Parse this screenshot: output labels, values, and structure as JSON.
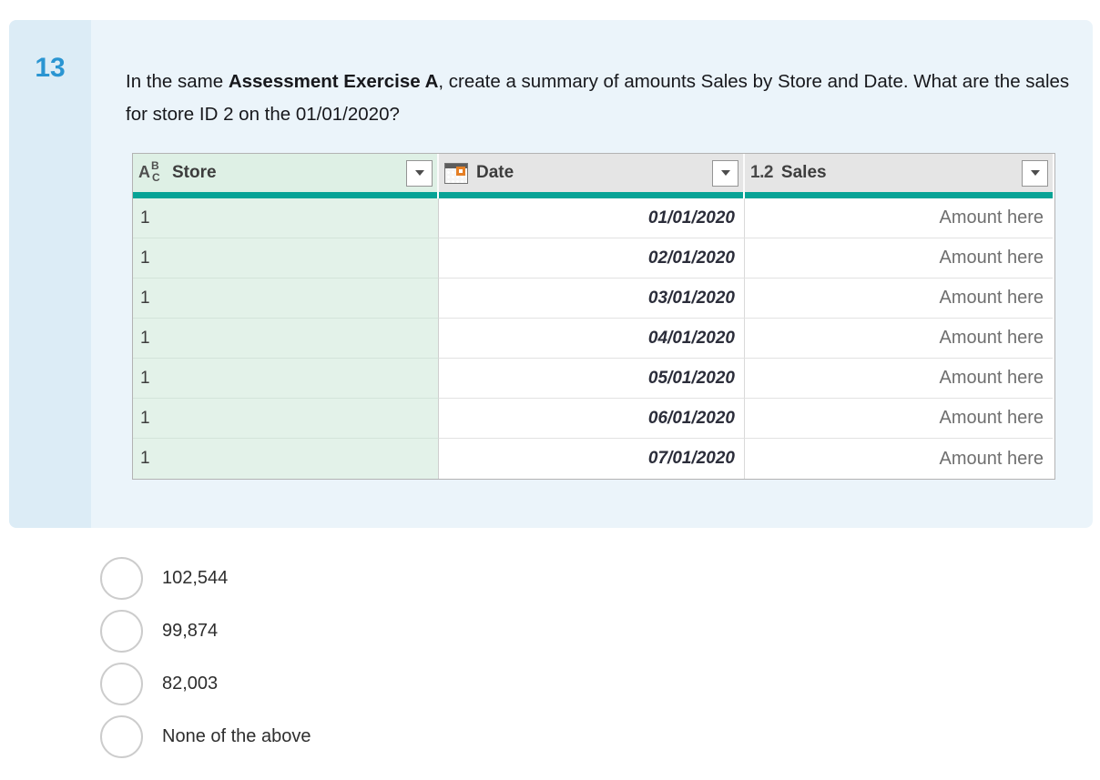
{
  "question": {
    "number": "13",
    "text_prefix": "In the same ",
    "text_bold": "Assessment Exercise A",
    "text_suffix": ", create a summary of amounts Sales by Store and Date. What are the sales for store ID 2 on the 01/01/2020?"
  },
  "table": {
    "columns": [
      {
        "label": "Store",
        "type_icon": "text-type-icon"
      },
      {
        "label": "Date",
        "type_icon": "calendar-icon"
      },
      {
        "label": "Sales",
        "type_icon": "number-type-icon"
      }
    ],
    "type_icons": {
      "abc_a": "A",
      "abc_b": "B",
      "abc_c": "C",
      "number": "1.2"
    },
    "rows": [
      {
        "store": "1",
        "date": "01/01/2020",
        "sales": "Amount here"
      },
      {
        "store": "1",
        "date": "02/01/2020",
        "sales": "Amount here"
      },
      {
        "store": "1",
        "date": "03/01/2020",
        "sales": "Amount here"
      },
      {
        "store": "1",
        "date": "04/01/2020",
        "sales": "Amount here"
      },
      {
        "store": "1",
        "date": "05/01/2020",
        "sales": "Amount here"
      },
      {
        "store": "1",
        "date": "06/01/2020",
        "sales": "Amount here"
      },
      {
        "store": "1",
        "date": "07/01/2020",
        "sales": "Amount here"
      }
    ]
  },
  "options": [
    {
      "label": "102,544"
    },
    {
      "label": "99,874"
    },
    {
      "label": "82,003"
    },
    {
      "label": "None of the above"
    }
  ],
  "colors": {
    "accent_teal": "#07a396",
    "question_number_blue": "#2a95d2",
    "card_body_blue": "#ebf4fa",
    "card_strip_blue": "#dcecf6",
    "selected_column_green": "#e3f2e9",
    "header_gray": "#e5e5e5"
  }
}
